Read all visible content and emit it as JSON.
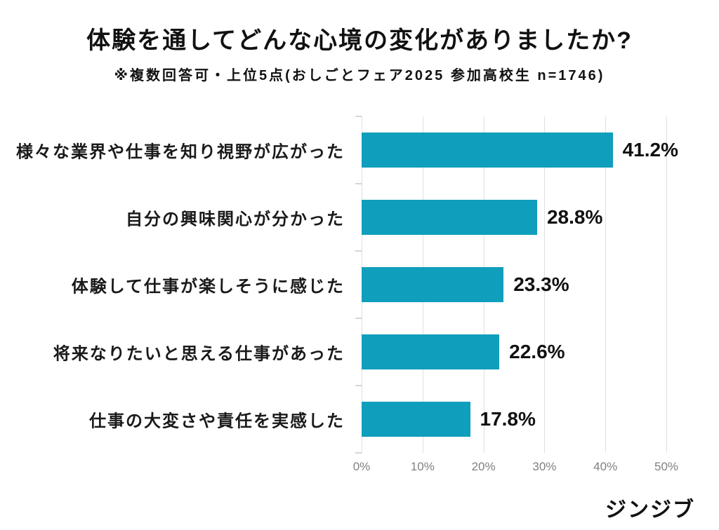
{
  "chart_data": {
    "type": "bar",
    "orientation": "horizontal",
    "title": "体験を通してどんな心境の変化がありましたか?",
    "subtitle": "※複数回答可・上位5点(おしごとフェア2025 参加高校生 n=1746)",
    "categories": [
      "様々な業界や仕事を知り視野が広がった",
      "自分の興味関心が分かった",
      "体験して仕事が楽しそうに感じた",
      "将来なりたいと思える仕事があった",
      "仕事の大変さや責任を実感した"
    ],
    "values": [
      41.2,
      28.8,
      23.3,
      22.6,
      17.8
    ],
    "value_labels": [
      "41.2%",
      "28.8%",
      "23.3%",
      "22.6%",
      "17.8%"
    ],
    "x_ticks": [
      "0%",
      "10%",
      "20%",
      "30%",
      "40%",
      "50%"
    ],
    "xlim": [
      0,
      50
    ],
    "grid": true,
    "legend": "none",
    "bar_color": "#0f9ebb"
  },
  "colors": {
    "bar": "#0f9ebb",
    "grid": "#dfdfdf",
    "axis_tick": "#d6d6d6",
    "axis_label": "#808080",
    "text": "#111111"
  },
  "footer": {
    "logo_text": "ジンジブ"
  }
}
